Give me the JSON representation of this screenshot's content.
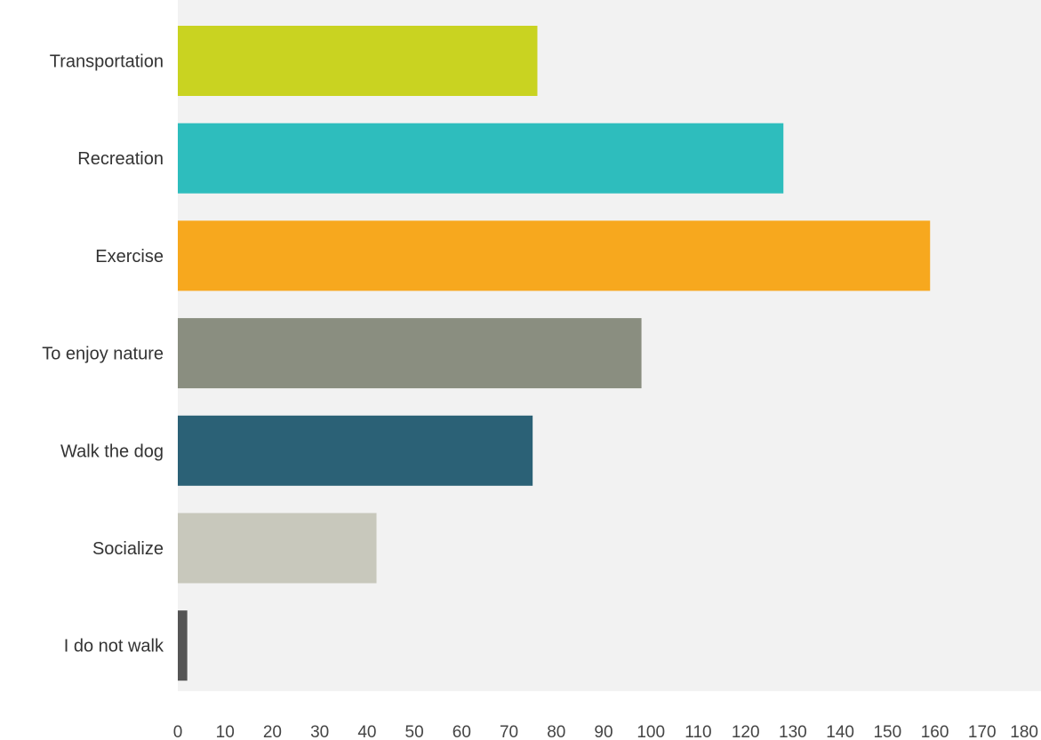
{
  "chart_data": {
    "type": "bar",
    "orientation": "horizontal",
    "categories": [
      "Transportation",
      "Recreation",
      "Exercise",
      "To enjoy nature",
      "Walk the dog",
      "Socialize",
      "I do not walk"
    ],
    "values": [
      76,
      128,
      159,
      98,
      75,
      42,
      2
    ],
    "colors": [
      "#c9d321",
      "#2ebdbd",
      "#f7a81e",
      "#8a8e80",
      "#2b6176",
      "#c8c8bc",
      "#555555"
    ],
    "xlim": [
      0,
      180
    ],
    "xticks": [
      "0",
      "10",
      "20",
      "30",
      "40",
      "50",
      "60",
      "70",
      "80",
      "90",
      "100",
      "110",
      "120",
      "130",
      "140",
      "150",
      "160",
      "170",
      "180"
    ],
    "plot_background": "#f2f2f2",
    "grid": false,
    "legend": "none",
    "title": "",
    "xlabel": "",
    "ylabel": ""
  }
}
